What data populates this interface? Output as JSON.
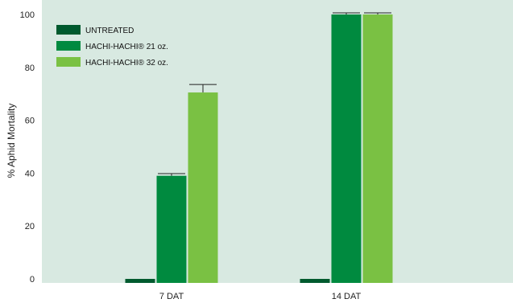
{
  "chart_data": {
    "type": "bar",
    "title": "",
    "xlabel": "",
    "ylabel": "% Aphid Mortality",
    "ylim": [
      0,
      100
    ],
    "yticks": [
      0,
      20,
      40,
      60,
      80,
      100
    ],
    "grid": false,
    "legend_position": "top-left",
    "background_color": "#d8e9e1",
    "categories": [
      "7 DAT",
      "14 DAT"
    ],
    "series": [
      {
        "name": "UNTREATED",
        "color": "#005a2e",
        "values": [
          0,
          0
        ],
        "errors": [
          0,
          0
        ]
      },
      {
        "name": "HACHI-HACHI® 21 oz.",
        "color": "#008a3f",
        "values": [
          39,
          100
        ],
        "errors": [
          0.8,
          0.6
        ]
      },
      {
        "name": "HACHI-HACHI® 32 oz.",
        "color": "#7ac143",
        "values": [
          70.5,
          100
        ],
        "errors": [
          3,
          0.6
        ]
      }
    ]
  }
}
